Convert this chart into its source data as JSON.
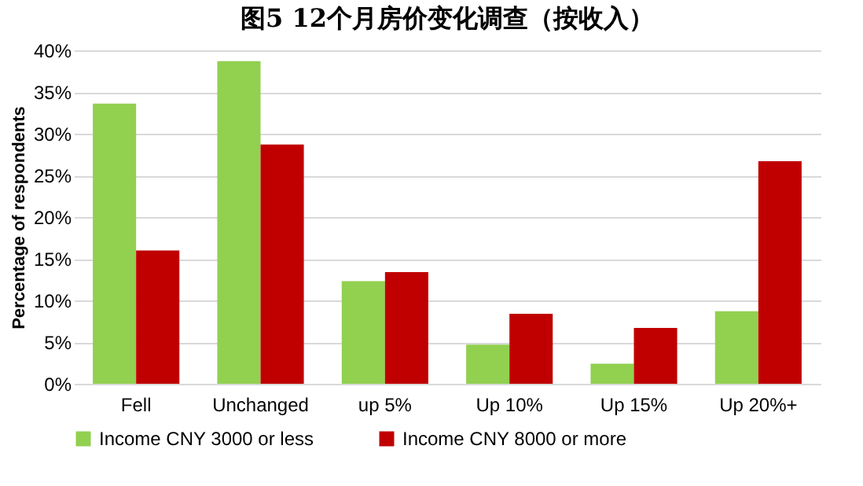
{
  "chart_data": {
    "type": "bar",
    "title": "图5 12个月房价变化调查（按收入）",
    "ylabel": "Percentage of respondents",
    "categories": [
      "Fell",
      "Unchanged",
      "up 5%",
      "Up 10%",
      "Up 15%",
      "Up 20%+"
    ],
    "series": [
      {
        "name": "Income CNY 3000 or less",
        "color": "#92d050",
        "values": [
          33.6,
          38.7,
          12.3,
          4.7,
          2.4,
          8.7
        ]
      },
      {
        "name": "Income CNY 8000 or more",
        "color": "#c00000",
        "values": [
          16.0,
          28.7,
          13.4,
          8.4,
          6.7,
          26.7
        ]
      }
    ],
    "ylim": [
      0,
      40
    ],
    "yticks": [
      {
        "value": 0,
        "label": "0%"
      },
      {
        "value": 5,
        "label": "5%"
      },
      {
        "value": 10,
        "label": "10%"
      },
      {
        "value": 15,
        "label": "15%"
      },
      {
        "value": 20,
        "label": "20%"
      },
      {
        "value": 25,
        "label": "25%"
      },
      {
        "value": 30,
        "label": "30%"
      },
      {
        "value": 35,
        "label": "35%"
      },
      {
        "value": 40,
        "label": "40%"
      }
    ],
    "grid": "y",
    "legend": "bottom"
  }
}
